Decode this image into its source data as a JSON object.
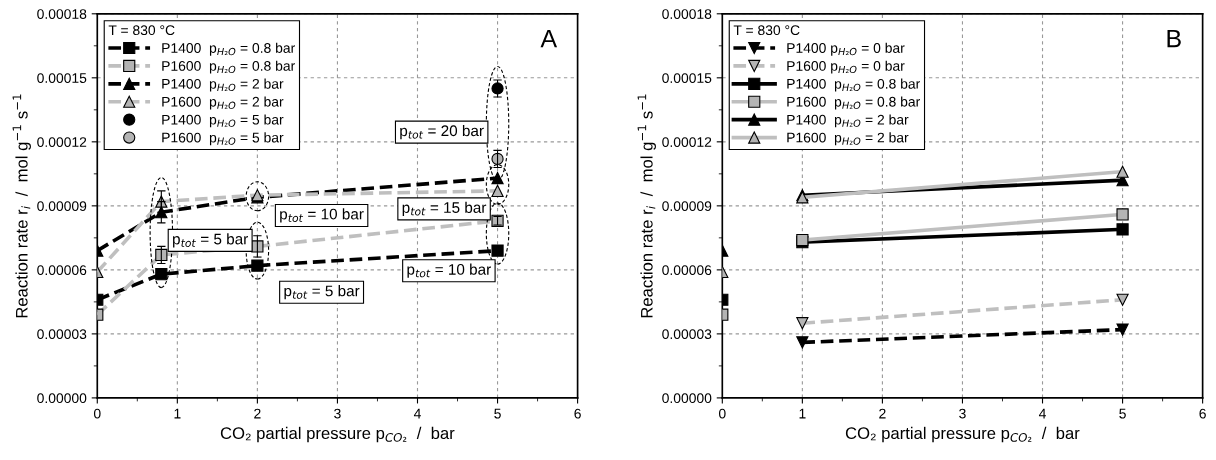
{
  "chart_data": [
    {
      "type": "line",
      "xlabel": "CO₂ partial pressure p$_{CO₂}$  /  bar",
      "ylabel": "Reaction rate r$_{i}$  /  mol g$^{−1}$ s$^{−1}$",
      "legend_title": "T = 830 °C",
      "xlim": [
        0,
        6
      ],
      "xticks": [
        0,
        1,
        2,
        3,
        4,
        5,
        6
      ],
      "ylim": [
        0,
        0.00018
      ],
      "yticks": [
        {
          "value": 0,
          "label": "0.00000"
        },
        {
          "value": 3e-05,
          "label": "0.00003"
        },
        {
          "value": 6e-05,
          "label": "0.00006"
        },
        {
          "value": 9e-05,
          "label": "0.00009"
        },
        {
          "value": 0.00012,
          "label": "0.00012"
        },
        {
          "value": 0.00015,
          "label": "0.00015"
        },
        {
          "value": 0.00018,
          "label": "0.00018"
        }
      ],
      "grid": true,
      "legend": "top left",
      "series": [
        {
          "name": "P1400  p$_{H₂O}$ = 0.8 bar",
          "color": "#000000",
          "marker": "square",
          "line_style": "dashed",
          "x": [
            0,
            0.8,
            2,
            5
          ],
          "values": [
            4.6e-05,
            5.8e-05,
            6.2e-05,
            6.9e-05
          ]
        },
        {
          "name": "P1600  p$_{H₂O}$ = 0.8 bar",
          "color": "#bfbfbf",
          "marker": "square",
          "line_style": "dashed",
          "x": [
            0,
            0.8,
            2,
            5
          ],
          "values": [
            3.9e-05,
            6.7e-05,
            7.1e-05,
            8.3e-05
          ],
          "errors": [
            null,
            4e-06,
            5e-06,
            2e-06
          ]
        },
        {
          "name": "P1400  p$_{H₂O}$ = 2 bar",
          "color": "#000000",
          "marker": "triangle",
          "line_style": "dashed",
          "x": [
            0,
            0.8,
            2,
            5
          ],
          "values": [
            6.9e-05,
            8.7e-05,
            9.4e-05,
            0.000103
          ],
          "errors": [
            null,
            5e-06,
            null,
            null
          ]
        },
        {
          "name": "P1600  p$_{H₂O}$ = 2 bar",
          "color": "#bfbfbf",
          "marker": "triangle",
          "line_style": "dashed",
          "x": [
            0,
            0.8,
            2,
            5
          ],
          "values": [
            5.9e-05,
            9.2e-05,
            9.5e-05,
            9.7e-05
          ],
          "errors": [
            null,
            5e-06,
            null,
            null
          ]
        },
        {
          "name": "P1400  p$_{H₂O}$ = 5 bar",
          "type": "scatter",
          "color": "#000000",
          "marker": "circle",
          "x": [
            5
          ],
          "values": [
            0.000145
          ],
          "errors": [
            4e-06
          ]
        },
        {
          "name": "P1600  p$_{H₂O}$ = 5 bar",
          "type": "scatter",
          "color": "#bfbfbf",
          "marker": "circle",
          "x": [
            5
          ],
          "values": [
            0.000112
          ],
          "errors": [
            4e-06
          ]
        }
      ],
      "annotations": [
        "A",
        "p$_{tot}$ = 5 bar",
        "p$_{tot}$ = 10 bar",
        "p$_{tot}$ = 5 bar",
        "p$_{tot}$ = 20 bar",
        "p$_{tot}$ = 15 bar",
        "p$_{tot}$ = 10 bar"
      ]
    },
    {
      "type": "line",
      "xlabel": "CO₂ partial pressure p$_{CO₂}$  /  bar",
      "ylabel": "Reaction rate r$_{i}$  /  mol g$^{−1}$ s$^{−1}$",
      "legend_title": "T = 830 °C",
      "xlim": [
        0,
        6
      ],
      "xticks": [
        0,
        1,
        2,
        3,
        4,
        5,
        6
      ],
      "ylim": [
        0,
        0.00018
      ],
      "yticks": [
        {
          "value": 0,
          "label": "0.00000"
        },
        {
          "value": 3e-05,
          "label": "0.00003"
        },
        {
          "value": 6e-05,
          "label": "0.00006"
        },
        {
          "value": 9e-05,
          "label": "0.00009"
        },
        {
          "value": 0.00012,
          "label": "0.00012"
        },
        {
          "value": 0.00015,
          "label": "0.00015"
        },
        {
          "value": 0.00018,
          "label": "0.00018"
        }
      ],
      "grid": true,
      "legend": "top left",
      "series": [
        {
          "name": "P1400 p$_{H₂O}$ = 0 bar",
          "color": "#000000",
          "marker": "triangle_down",
          "line_style": "dashed",
          "x": [
            1,
            5
          ],
          "values": [
            2.6e-05,
            3.2e-05
          ]
        },
        {
          "name": "P1600 p$_{H₂O}$ = 0 bar",
          "color": "#bfbfbf",
          "marker": "triangle_down",
          "line_style": "dashed",
          "x": [
            1,
            5
          ],
          "values": [
            3.5e-05,
            4.6e-05
          ]
        },
        {
          "name": "P1400  p$_{H₂O}$ = 0.8 bar",
          "color": "#000000",
          "marker": "square",
          "line_style": "solid",
          "x": [
            1,
            5
          ],
          "values": [
            7.3e-05,
            7.9e-05
          ]
        },
        {
          "name": "P1600  p$_{H₂O}$ = 0.8 bar",
          "color": "#bfbfbf",
          "marker": "square",
          "line_style": "solid",
          "x": [
            1,
            5
          ],
          "values": [
            7.4e-05,
            8.6e-05
          ]
        },
        {
          "name": "P1400  p$_{H₂O}$ = 2 bar",
          "color": "#000000",
          "marker": "triangle",
          "line_style": "solid",
          "x": [
            1,
            5
          ],
          "values": [
            9.5e-05,
            0.000102
          ]
        },
        {
          "name": "P1600  p$_{H₂O}$ = 2 bar",
          "color": "#bfbfbf",
          "marker": "triangle",
          "line_style": "solid",
          "x": [
            1,
            5
          ],
          "values": [
            9.4e-05,
            0.000106
          ]
        },
        {
          "type": "scatter",
          "color": "#000000",
          "marker": "triangle",
          "x": [
            0
          ],
          "values": [
            6.9e-05
          ]
        },
        {
          "type": "scatter",
          "color": "#bfbfbf",
          "marker": "triangle",
          "x": [
            0
          ],
          "values": [
            5.9e-05
          ]
        },
        {
          "type": "scatter",
          "color": "#000000",
          "marker": "square",
          "x": [
            0
          ],
          "values": [
            4.6e-05
          ]
        },
        {
          "type": "scatter",
          "color": "#bfbfbf",
          "marker": "square",
          "x": [
            0
          ],
          "values": [
            3.9e-05
          ]
        }
      ],
      "annotations": [
        "B"
      ]
    }
  ]
}
